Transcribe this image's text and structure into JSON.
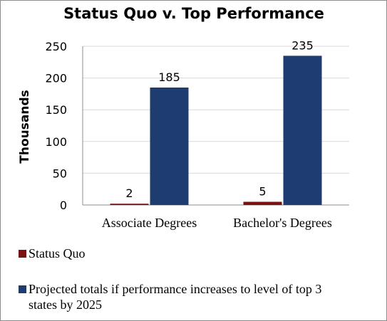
{
  "chart_data": {
    "type": "bar",
    "title": "Status Quo v. Top Performance",
    "ylabel": "Thousands",
    "xlabel": "",
    "ylim": [
      0,
      250
    ],
    "yticks": [
      0,
      50,
      100,
      150,
      200,
      250
    ],
    "grid": true,
    "legend_placement": "bottom",
    "categories": [
      "Associate Degrees",
      "Bachelor's Degrees"
    ],
    "series": [
      {
        "name": "Status Quo",
        "color": "#7b1113",
        "values": [
          2,
          5
        ],
        "labels": [
          "2",
          "5"
        ]
      },
      {
        "name": "Projected totals if performance increases to level of top 3 states by 2025",
        "legend_lines": [
          "Projected totals if performance increases to level of top 3",
          "states by 2025"
        ],
        "color": "#1f3c70",
        "values": [
          185,
          235
        ],
        "labels": [
          "185",
          "235"
        ]
      }
    ]
  }
}
